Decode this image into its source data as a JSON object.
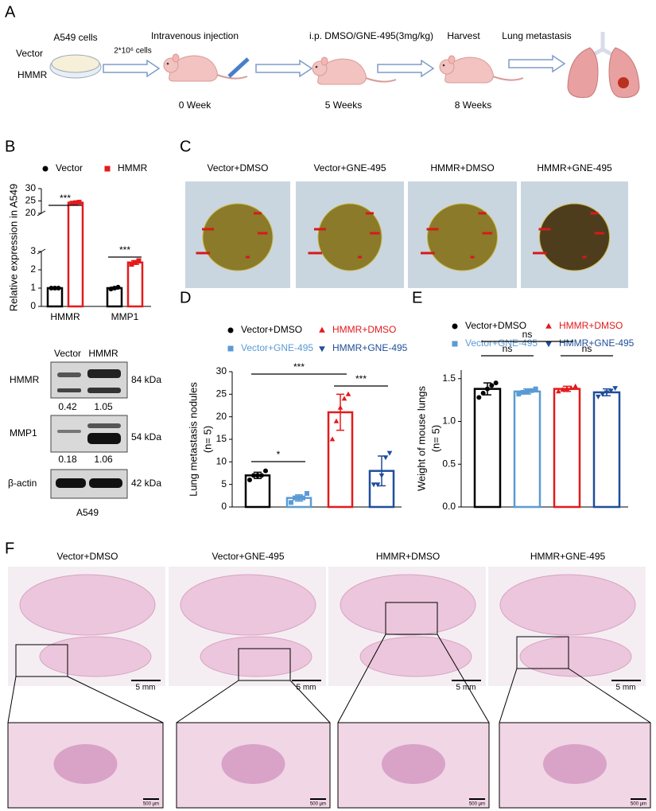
{
  "panels": {
    "A": {
      "label": "A",
      "groups": [
        "Vector",
        "HMMR"
      ],
      "cells": "A549 cells",
      "dose": "2*10⁶ cells",
      "steps": [
        {
          "title": "Intravenous injection",
          "time": "0 Week"
        },
        {
          "title": "i.p. DMSO/GNE-495(3mg/kg)",
          "time": "5 Weeks"
        },
        {
          "title": "Harvest",
          "time": "8 Weeks"
        },
        {
          "title": "Lung metastasis"
        }
      ]
    },
    "B": {
      "label": "B"
    },
    "blot": {
      "lanes": [
        "Vector",
        "HMMR"
      ],
      "cell_line": "A549",
      "rows": [
        {
          "protein": "HMMR",
          "size": "84 kDa",
          "ratios": [
            "0.42",
            "1.05"
          ]
        },
        {
          "protein": "MMP1",
          "size": "54 kDa",
          "ratios": [
            "0.18",
            "1.06"
          ]
        },
        {
          "protein": "β-actin",
          "size": "42 kDa"
        }
      ]
    },
    "C": {
      "label": "C",
      "groups": [
        "Vector+DMSO",
        "Vector+GNE-495",
        "HMMR+DMSO",
        "HMMR+GNE-495"
      ]
    },
    "D": {
      "label": "D"
    },
    "E": {
      "label": "E"
    },
    "F": {
      "label": "F",
      "groups": [
        "Vector+DMSO",
        "Vector+GNE-495",
        "HMMR+DMSO",
        "HMMR+GNE-495"
      ],
      "scale_top": "5 mm",
      "scale_bottom": "500 μm"
    }
  },
  "chart_data": [
    {
      "type": "bar",
      "ylabel": "Relative expression in A549",
      "categories": [
        "HMMR",
        "MMP1"
      ],
      "series": [
        {
          "name": "Vector",
          "color": "#000000",
          "marker": "circle",
          "values": [
            1.0,
            1.0
          ],
          "errors": [
            0.03,
            0.05
          ],
          "points": [
            [
              1.0,
              1.0,
              1.0
            ],
            [
              0.95,
              1.0,
              1.05
            ]
          ]
        },
        {
          "name": "HMMR",
          "color": "#e41a1c",
          "marker": "square",
          "values": [
            24.3,
            2.4
          ],
          "errors": [
            0.3,
            0.1
          ],
          "points": [
            [
              24.1,
              24.3,
              24.5
            ],
            [
              2.3,
              2.4,
              2.5
            ]
          ]
        }
      ],
      "ylim": [
        0,
        30
      ],
      "ybreak": [
        3,
        20
      ],
      "yticks": [
        0,
        1,
        2,
        3,
        20,
        25,
        30
      ],
      "annotations": [
        "***",
        "***"
      ]
    },
    {
      "type": "bar",
      "ylabel": [
        "Lung metastasis nodules",
        "(n= 5)"
      ],
      "series": [
        {
          "name": "Vector+DMSO",
          "color": "#000000",
          "marker": "circle",
          "values": [
            7
          ],
          "errors": [
            0.7
          ],
          "points": [
            [
              6,
              7,
              7,
              7,
              8
            ]
          ]
        },
        {
          "name": "Vector+GNE-495",
          "color": "#5b9bd5",
          "marker": "square",
          "values": [
            2
          ],
          "errors": [
            0.7
          ],
          "points": [
            [
              1,
              2,
              2,
              2,
              3
            ]
          ]
        },
        {
          "name": "HMMR+DMSO",
          "color": "#e41a1c",
          "marker": "triangle",
          "values": [
            21
          ],
          "errors": [
            4.0
          ],
          "points": [
            [
              15,
              19,
              22,
              24,
              25
            ]
          ]
        },
        {
          "name": "HMMR+GNE-495",
          "color": "#1f4e99",
          "marker": "triangle-down",
          "values": [
            8
          ],
          "errors": [
            3.3
          ],
          "points": [
            [
              5,
              5,
              7,
              11,
              12
            ]
          ]
        }
      ],
      "ylim": [
        0,
        30
      ],
      "yticks": [
        0,
        5,
        10,
        15,
        20,
        25,
        30
      ],
      "annotations": [
        "*",
        "***",
        "***"
      ]
    },
    {
      "type": "bar",
      "ylabel": [
        "Weight of mouse lungs",
        "(n= 5)"
      ],
      "series": [
        {
          "name": "Vector+DMSO",
          "color": "#000000",
          "marker": "circle",
          "values": [
            1.38
          ],
          "errors": [
            0.07
          ],
          "points": [
            [
              1.28,
              1.33,
              1.38,
              1.42,
              1.45
            ]
          ]
        },
        {
          "name": "Vector+GNE-495",
          "color": "#5b9bd5",
          "marker": "square",
          "values": [
            1.35
          ],
          "errors": [
            0.03
          ],
          "points": [
            [
              1.32,
              1.34,
              1.35,
              1.36,
              1.38
            ]
          ]
        },
        {
          "name": "HMMR+DMSO",
          "color": "#e41a1c",
          "marker": "triangle",
          "values": [
            1.38
          ],
          "errors": [
            0.03
          ],
          "points": [
            [
              1.35,
              1.37,
              1.38,
              1.39,
              1.41
            ]
          ]
        },
        {
          "name": "HMMR+GNE-495",
          "color": "#1f4e99",
          "marker": "triangle-down",
          "values": [
            1.34
          ],
          "errors": [
            0.04
          ],
          "points": [
            [
              1.29,
              1.32,
              1.34,
              1.36,
              1.39
            ]
          ]
        }
      ],
      "ylim": [
        0,
        1.6
      ],
      "yticks": [
        {
          "value": 0,
          "label": "0.0"
        },
        {
          "value": 0.5,
          "label": "0.5"
        },
        {
          "value": 1.0,
          "label": "1.0"
        },
        {
          "value": 1.5,
          "label": "1.5"
        }
      ],
      "annotations": [
        "ns",
        "ns",
        "ns"
      ]
    }
  ]
}
